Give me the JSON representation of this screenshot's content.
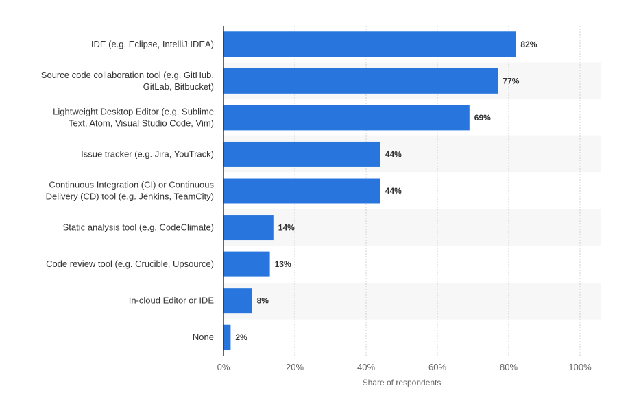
{
  "chart_data": {
    "type": "bar",
    "orientation": "horizontal",
    "categories": [
      [
        "IDE (e.g. Eclipse, IntelliJ IDEA)"
      ],
      [
        "Source code collaboration tool (e.g. GitHub,",
        "GitLab, Bitbucket)"
      ],
      [
        "Lightweight Desktop Editor (e.g. Sublime",
        "Text, Atom, Visual Studio Code, Vim)"
      ],
      [
        "Issue tracker (e.g. Jira, YouTrack)"
      ],
      [
        "Continuous Integration (CI) or Continuous",
        "Delivery (CD) tool (e.g. Jenkins, TeamCity)"
      ],
      [
        "Static analysis tool (e.g. CodeClimate)"
      ],
      [
        "Code review tool (e.g. Crucible, Upsource)"
      ],
      [
        "In-cloud Editor or IDE"
      ],
      [
        "None"
      ]
    ],
    "values": [
      82,
      77,
      69,
      44,
      44,
      14,
      13,
      8,
      2
    ],
    "value_labels": [
      "82%",
      "77%",
      "69%",
      "44%",
      "44%",
      "14%",
      "13%",
      "8%",
      "2%"
    ],
    "xlabel": "Share of respondents",
    "ylabel": "",
    "xlim": [
      0,
      100
    ],
    "ticks": [
      0,
      20,
      40,
      60,
      80,
      100
    ],
    "tick_labels": [
      "0%",
      "20%",
      "40%",
      "60%",
      "80%",
      "100%"
    ],
    "grid": true,
    "colors": {
      "bar": "#2876dd",
      "band": "#f7f7f7",
      "grid": "#d0d0d0",
      "axis": "#333333"
    }
  }
}
